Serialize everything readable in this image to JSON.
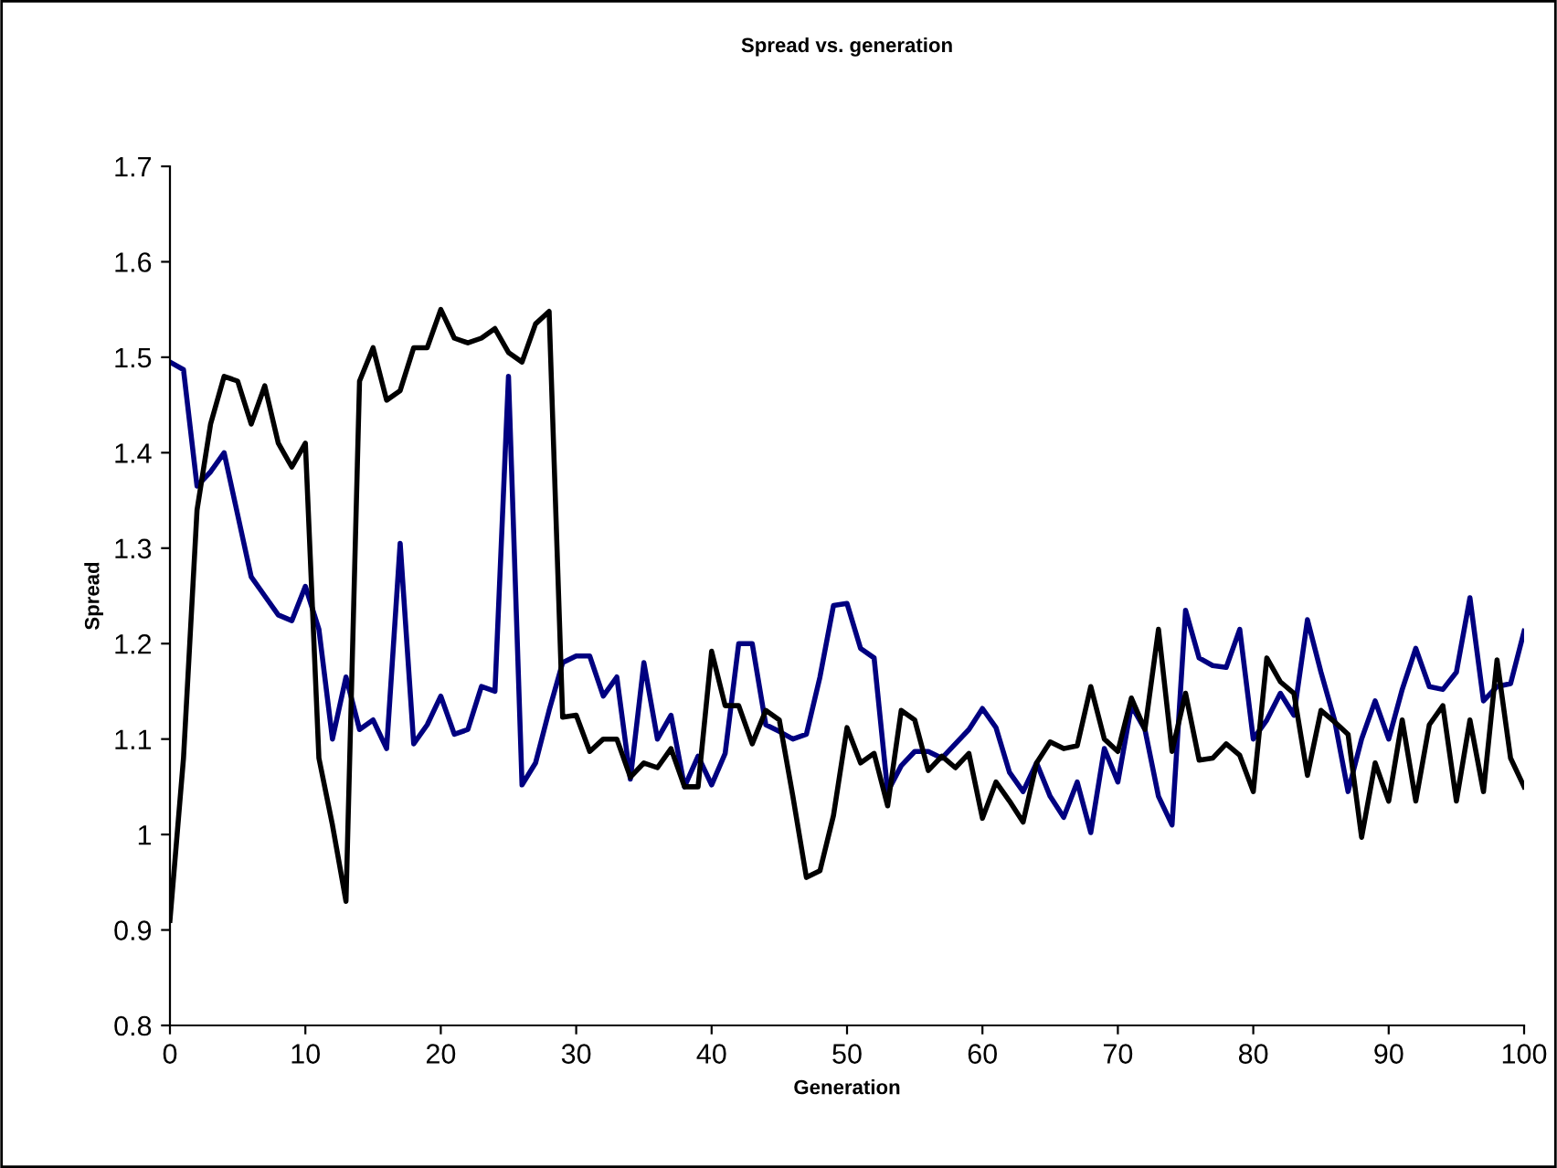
{
  "chart_data": {
    "type": "line",
    "title": "Spread vs. generation",
    "xlabel": "Generation",
    "ylabel": "Spread",
    "x": [
      0,
      1,
      2,
      3,
      4,
      5,
      6,
      7,
      8,
      9,
      10,
      11,
      12,
      13,
      14,
      15,
      16,
      17,
      18,
      19,
      20,
      21,
      22,
      23,
      24,
      25,
      26,
      27,
      28,
      29,
      30,
      31,
      32,
      33,
      34,
      35,
      36,
      37,
      38,
      39,
      40,
      41,
      42,
      43,
      44,
      45,
      46,
      47,
      48,
      49,
      50,
      51,
      52,
      53,
      54,
      55,
      56,
      57,
      58,
      59,
      60,
      61,
      62,
      63,
      64,
      65,
      66,
      67,
      68,
      69,
      70,
      71,
      72,
      73,
      74,
      75,
      76,
      77,
      78,
      79,
      80,
      81,
      82,
      83,
      84,
      85,
      86,
      87,
      88,
      89,
      90,
      91,
      92,
      93,
      94,
      95,
      96,
      97,
      98,
      99,
      100
    ],
    "series": [
      {
        "color": "#000080",
        "values": [
          1.495,
          1.487,
          1.365,
          1.38,
          1.4,
          1.335,
          1.27,
          1.25,
          1.23,
          1.224,
          1.26,
          1.215,
          1.1,
          1.165,
          1.11,
          1.12,
          1.09,
          1.305,
          1.095,
          1.115,
          1.145,
          1.105,
          1.11,
          1.155,
          1.15,
          1.48,
          1.052,
          1.075,
          1.13,
          1.18,
          1.187,
          1.187,
          1.145,
          1.165,
          1.058,
          1.18,
          1.1,
          1.125,
          1.05,
          1.082,
          1.052,
          1.085,
          1.2,
          1.2,
          1.115,
          1.108,
          1.1,
          1.105,
          1.165,
          1.24,
          1.242,
          1.195,
          1.185,
          1.045,
          1.072,
          1.087,
          1.087,
          1.08,
          1.095,
          1.11,
          1.132,
          1.112,
          1.065,
          1.045,
          1.075,
          1.04,
          1.018,
          1.055,
          1.002,
          1.09,
          1.055,
          1.135,
          1.11,
          1.04,
          1.01,
          1.235,
          1.185,
          1.177,
          1.175,
          1.215,
          1.1,
          1.12,
          1.148,
          1.125,
          1.225,
          1.17,
          1.12,
          1.045,
          1.1,
          1.14,
          1.1,
          1.152,
          1.195,
          1.155,
          1.152,
          1.17,
          1.248,
          1.14,
          1.155,
          1.158,
          1.213
        ]
      },
      {
        "color": "#000000",
        "values": [
          0.91,
          1.08,
          1.34,
          1.43,
          1.48,
          1.475,
          1.43,
          1.47,
          1.41,
          1.385,
          1.41,
          1.08,
          1.01,
          0.93,
          1.475,
          1.51,
          1.455,
          1.465,
          1.51,
          1.51,
          1.55,
          1.52,
          1.515,
          1.52,
          1.53,
          1.505,
          1.495,
          1.535,
          1.548,
          1.123,
          1.125,
          1.087,
          1.1,
          1.1,
          1.06,
          1.075,
          1.07,
          1.09,
          1.05,
          1.05,
          1.192,
          1.135,
          1.135,
          1.095,
          1.13,
          1.12,
          1.04,
          0.955,
          0.962,
          1.02,
          1.112,
          1.075,
          1.085,
          1.03,
          1.13,
          1.12,
          1.067,
          1.082,
          1.07,
          1.085,
          1.017,
          1.055,
          1.035,
          1.013,
          1.075,
          1.097,
          1.09,
          1.093,
          1.155,
          1.1,
          1.087,
          1.143,
          1.11,
          1.215,
          1.087,
          1.148,
          1.078,
          1.08,
          1.095,
          1.083,
          1.045,
          1.185,
          1.16,
          1.148,
          1.062,
          1.13,
          1.118,
          1.105,
          0.997,
          1.075,
          1.035,
          1.12,
          1.035,
          1.115,
          1.135,
          1.035,
          1.12,
          1.045,
          1.183,
          1.08,
          1.05
        ]
      }
    ],
    "xlim": [
      0,
      100
    ],
    "xticks": [
      0,
      10,
      20,
      30,
      40,
      50,
      60,
      70,
      80,
      90,
      100
    ],
    "ylim": [
      0.8,
      1.7
    ],
    "yticks": [
      0.8,
      0.9,
      1,
      1.1,
      1.2,
      1.3,
      1.4,
      1.5,
      1.6,
      1.7
    ],
    "grid": false,
    "marker": "none",
    "line_style": "solid"
  }
}
